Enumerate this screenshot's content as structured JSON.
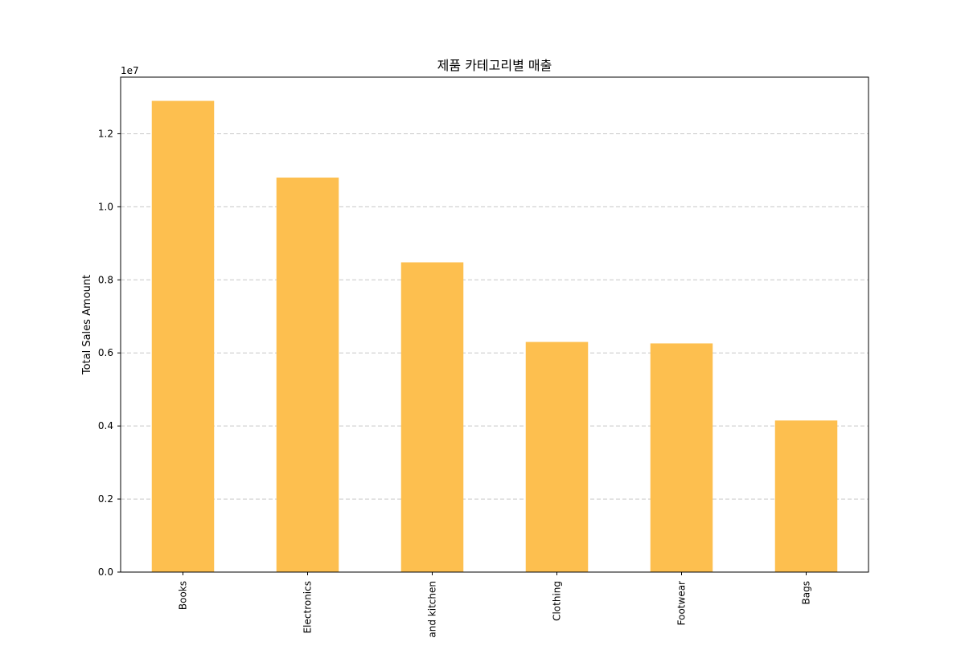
{
  "chart_data": {
    "type": "bar",
    "title": "제품 카테고리별 매출",
    "xlabel": "",
    "ylabel": "Total Sales Amount",
    "y_offset_label": "1e7",
    "categories": [
      "Books",
      "Electronics",
      "and kitchen",
      "Clothing",
      "Footwear",
      "Bags"
    ],
    "values": [
      12900000,
      10800000,
      8480000,
      6300000,
      6260000,
      4150000
    ],
    "ylim": [
      0,
      13550000
    ],
    "y_ticks": [
      {
        "value": 0,
        "label": "0.0"
      },
      {
        "value": 2000000,
        "label": "0.2"
      },
      {
        "value": 4000000,
        "label": "0.4"
      },
      {
        "value": 6000000,
        "label": "0.6"
      },
      {
        "value": 8000000,
        "label": "0.8"
      },
      {
        "value": 10000000,
        "label": "1.0"
      },
      {
        "value": 12000000,
        "label": "1.2"
      }
    ],
    "bar_color": "#fdbf4f",
    "grid": "y-dashed",
    "legend": "none"
  }
}
